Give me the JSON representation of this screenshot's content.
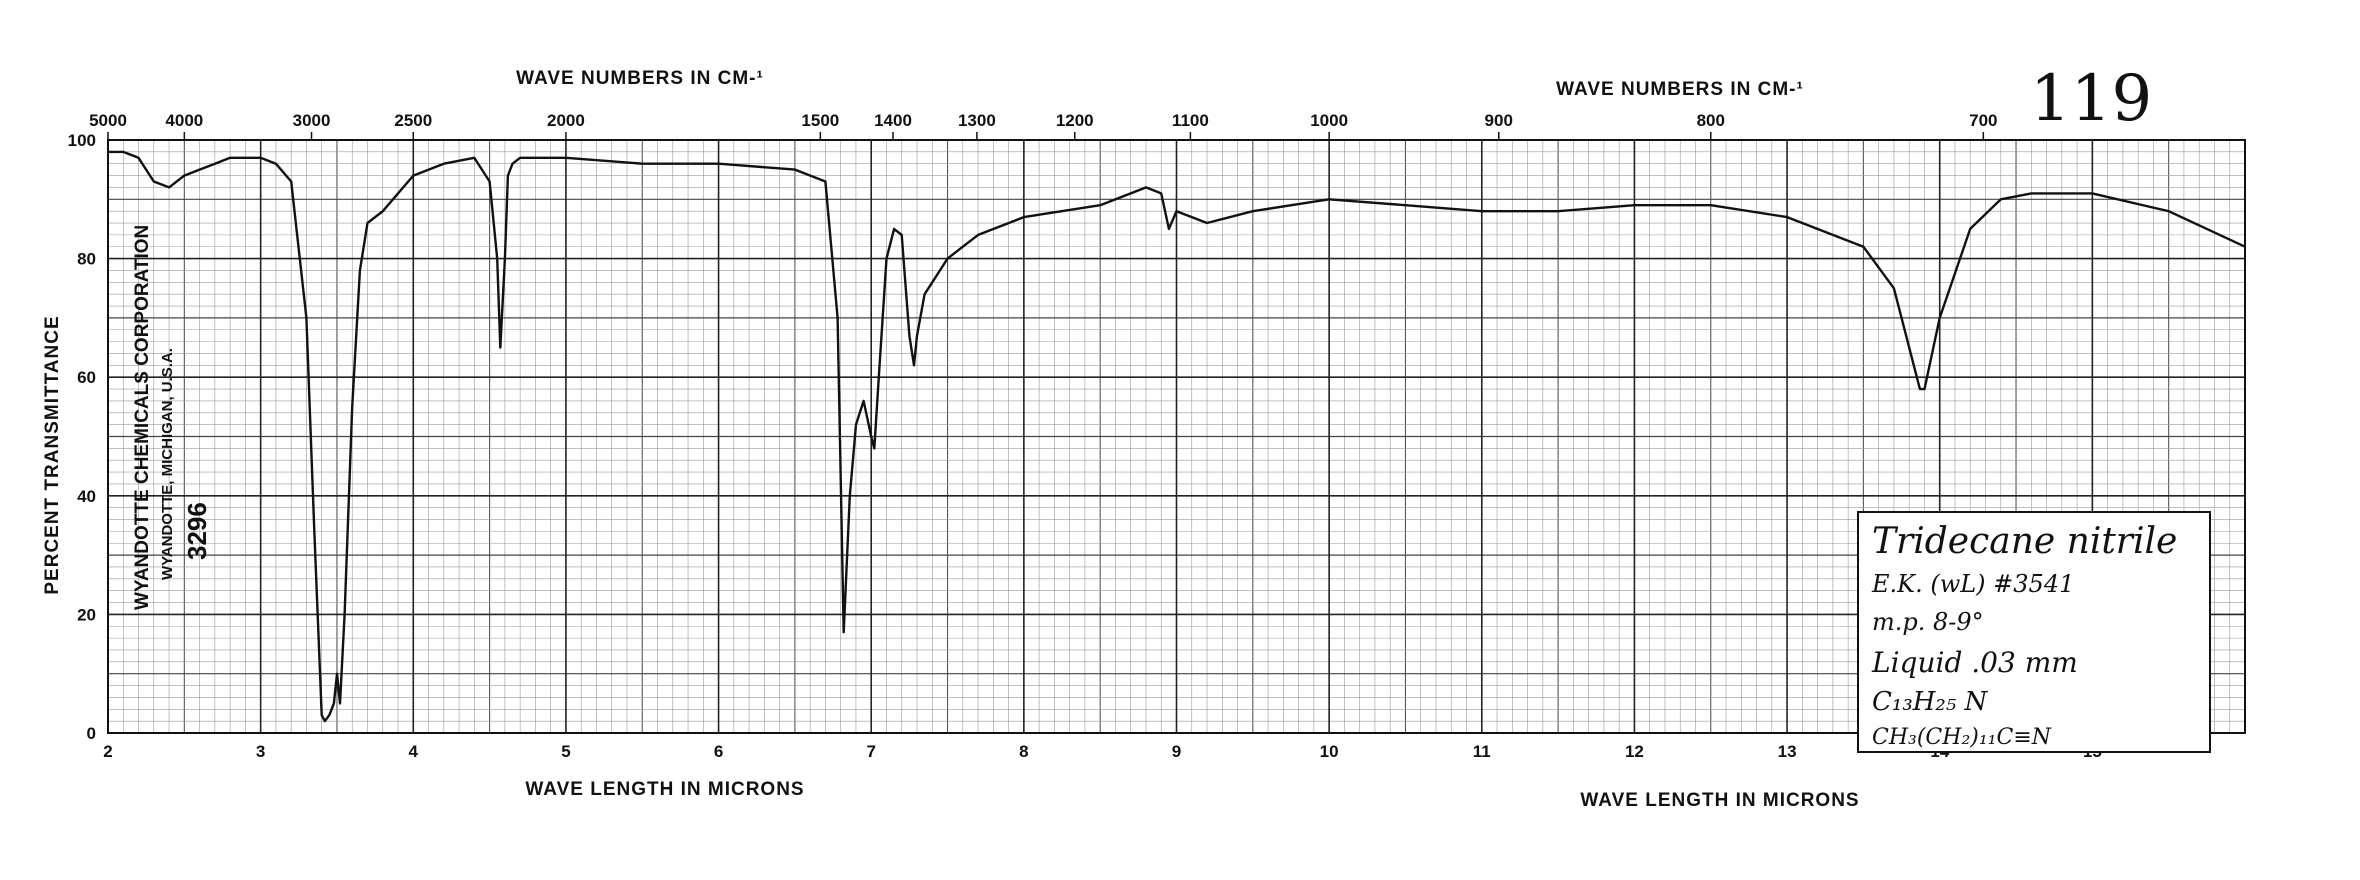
{
  "chart_data": {
    "type": "line",
    "ylabel": "PERCENT TRANSMITTANCE",
    "xlabel_bottom": "WAVE LENGTH IN MICRONS",
    "xlabel_top": "WAVE NUMBERS IN CM-¹",
    "xlim": [
      2,
      16
    ],
    "ylim": [
      0,
      100
    ],
    "x_ticks": [
      "2",
      "3",
      "4",
      "5",
      "6",
      "7",
      "8",
      "9",
      "10",
      "11",
      "12",
      "13",
      "14",
      "15"
    ],
    "y_ticks": [
      "0",
      "20",
      "40",
      "60",
      "80",
      "100"
    ],
    "wavenumber_ticks": [
      {
        "label": "5000",
        "wavenumber": 5000
      },
      {
        "label": "4000",
        "wavenumber": 4000
      },
      {
        "label": "3000",
        "wavenumber": 3000
      },
      {
        "label": "2500",
        "wavenumber": 2500
      },
      {
        "label": "2000",
        "wavenumber": 2000
      },
      {
        "label": "1500",
        "wavenumber": 1500
      },
      {
        "label": "1400",
        "wavenumber": 1400
      },
      {
        "label": "1300",
        "wavenumber": 1300
      },
      {
        "label": "1200",
        "wavenumber": 1200
      },
      {
        "label": "1100",
        "wavenumber": 1100
      },
      {
        "label": "1000",
        "wavenumber": 1000
      },
      {
        "label": "900",
        "wavenumber": 900
      },
      {
        "label": "800",
        "wavenumber": 800
      },
      {
        "label": "700",
        "wavenumber": 700
      }
    ],
    "grid": true,
    "series": [
      {
        "x": [
          2.0,
          2.1,
          2.2,
          2.3,
          2.4,
          2.5,
          2.6,
          2.7,
          2.8,
          2.9,
          3.0,
          3.1,
          3.2,
          3.3,
          3.35,
          3.4,
          3.42,
          3.45,
          3.48,
          3.5,
          3.52,
          3.55,
          3.6,
          3.65,
          3.7,
          3.8,
          4.0,
          4.2,
          4.4,
          4.5,
          4.55,
          4.57,
          4.6,
          4.62,
          4.65,
          4.7,
          4.8,
          5.0,
          5.5,
          6.0,
          6.5,
          6.7,
          6.78,
          6.82,
          6.86,
          6.9,
          6.95,
          7.0,
          7.02,
          7.05,
          7.1,
          7.15,
          7.2,
          7.25,
          7.28,
          7.3,
          7.35,
          7.4,
          7.5,
          7.6,
          7.7,
          8.0,
          8.5,
          8.8,
          8.9,
          8.95,
          9.0,
          9.1,
          9.2,
          9.5,
          10.0,
          10.5,
          11.0,
          11.5,
          12.0,
          12.5,
          13.0,
          13.5,
          13.7,
          13.8,
          13.87,
          13.9,
          14.0,
          14.2,
          14.4,
          14.6,
          15.0,
          15.5,
          16.0
        ],
        "y": [
          98,
          98,
          97,
          93,
          92,
          94,
          95,
          96,
          97,
          97,
          97,
          96,
          93,
          70,
          35,
          3,
          2,
          3,
          5,
          10,
          5,
          20,
          55,
          78,
          86,
          88,
          94,
          96,
          97,
          93,
          80,
          65,
          80,
          94,
          96,
          97,
          97,
          97,
          96,
          96,
          95,
          93,
          70,
          17,
          40,
          52,
          56,
          50,
          48,
          60,
          80,
          85,
          84,
          67,
          62,
          67,
          74,
          76,
          80,
          82,
          84,
          87,
          89,
          92,
          91,
          85,
          88,
          87,
          86,
          88,
          90,
          89,
          88,
          88,
          89,
          89,
          87,
          82,
          75,
          65,
          58,
          58,
          70,
          85,
          90,
          91,
          91,
          88,
          82
        ]
      }
    ]
  },
  "page": {
    "figure_number": "119",
    "side_label": {
      "company": "WYANDOTTE CHEMICALS CORPORATION",
      "location": "WYANDOTTE, MICHIGAN, U.S.A.",
      "code": "3296"
    },
    "annotation": {
      "line1": "Tridecane nitrile",
      "line2": "E.K. (wL) #3541",
      "line3": "m.p. 8-9°",
      "line4": "Liquid   .03 mm",
      "line5": "C₁₃H₂₅ N",
      "line6": "CH₃(CH₂)₁₁C≡N"
    }
  }
}
